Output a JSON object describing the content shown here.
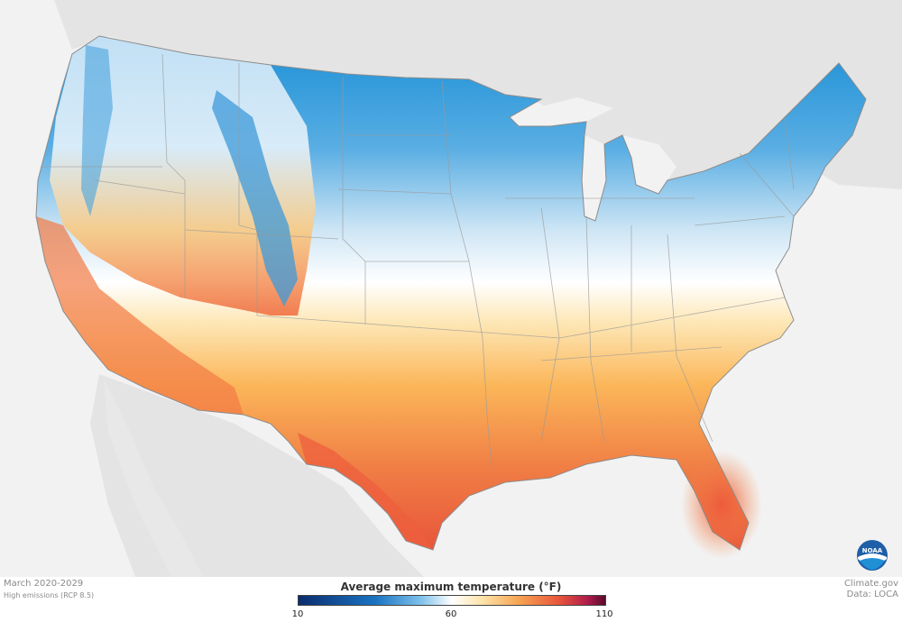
{
  "map": {
    "period": "March 2020-2029",
    "scenario": "High emissions (RCP 8.5)",
    "source": "Climate.gov",
    "data_source": "Data: LOCA",
    "logo_text": "NOAA"
  },
  "legend": {
    "title": "Average maximum temperature (°F)",
    "min": "10",
    "mid": "60",
    "max": "110",
    "colors": {
      "cold": "#1a8fd6",
      "neutral": "#ffffff",
      "warm": "#fbb659",
      "hot": "#e8553a"
    }
  }
}
